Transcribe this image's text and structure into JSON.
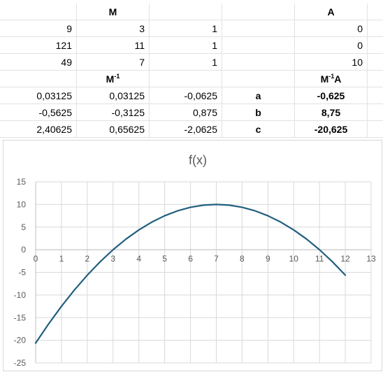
{
  "sheet": {
    "header1": {
      "m": "M",
      "a": "A"
    },
    "matrix_m": [
      [
        "9",
        "3",
        "1"
      ],
      [
        "121",
        "11",
        "1"
      ],
      [
        "49",
        "7",
        "1"
      ]
    ],
    "vector_a": [
      "0",
      "0",
      "10"
    ],
    "header2": {
      "m_inv": "M",
      "m_inv_sup": "-1",
      "m_inv_a": "M",
      "m_inv_a_sup": "-1",
      "m_inv_a_tail": "A"
    },
    "matrix_m_inv": [
      [
        "0,03125",
        "0,03125",
        "-0,0625"
      ],
      [
        "-0,5625",
        "-0,3125",
        "0,875"
      ],
      [
        "2,40625",
        "0,65625",
        "-2,0625"
      ]
    ],
    "coef_labels": [
      "a",
      "b",
      "c"
    ],
    "coef_values": [
      "-0,625",
      "8,75",
      "-20,625"
    ]
  },
  "chart_data": {
    "type": "line",
    "title": "f(x)",
    "xlabel": "",
    "ylabel": "",
    "xlim": [
      0,
      13
    ],
    "ylim": [
      -25,
      15
    ],
    "x_ticks": [
      "0",
      "1",
      "2",
      "3",
      "4",
      "5",
      "6",
      "7",
      "8",
      "9",
      "10",
      "11",
      "12",
      "13"
    ],
    "y_ticks": [
      "15",
      "10",
      "5",
      "0",
      "-5",
      "-10",
      "-15",
      "-20",
      "-25"
    ],
    "grid": true,
    "legend": "none",
    "series": [
      {
        "color": "#215f7e",
        "x": [
          0,
          0.5,
          1,
          1.5,
          2,
          2.5,
          3,
          3.5,
          4,
          4.5,
          5,
          5.5,
          6,
          6.5,
          7,
          7.5,
          8,
          8.5,
          9,
          9.5,
          10,
          10.5,
          11,
          11.5,
          12
        ],
        "y": [
          -20.625,
          -16.406,
          -12.5,
          -8.906,
          -5.625,
          -2.656,
          0,
          2.344,
          4.375,
          6.094,
          7.5,
          8.594,
          9.375,
          9.844,
          10,
          9.844,
          9.375,
          8.594,
          7.5,
          6.094,
          4.375,
          2.344,
          0,
          -2.656,
          -5.625
        ]
      }
    ]
  }
}
